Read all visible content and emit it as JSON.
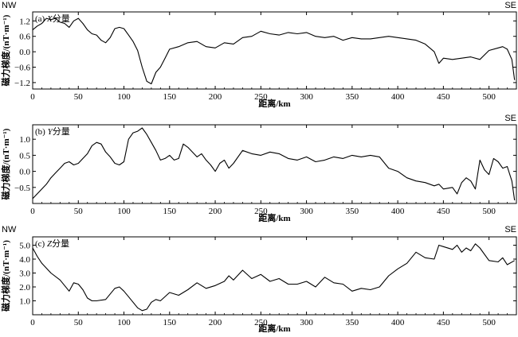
{
  "chart_data": [
    {
      "type": "line",
      "panel_label": "(a) ",
      "panel_label_italic": "X",
      "panel_label_suffix": "分量",
      "left_label": "NW",
      "right_label": "SE",
      "xlabel": "距离/km",
      "ylabel": "磁力梯度/(nT·m⁻¹)",
      "xlim": [
        0,
        530
      ],
      "ylim": [
        -1.45,
        1.55
      ],
      "xticks": [
        0,
        50,
        100,
        150,
        200,
        250,
        300,
        350,
        400,
        450,
        500
      ],
      "yticks": [
        -1.2,
        -0.6,
        0.0,
        0.6,
        1.2
      ],
      "ytick_labels": [
        "−1.2",
        "−0.6",
        "0.0",
        "0.6",
        "1.2"
      ],
      "series": [
        {
          "x": [
            0,
            5,
            10,
            15,
            20,
            25,
            30,
            35,
            40,
            45,
            50,
            55,
            60,
            65,
            70,
            75,
            80,
            85,
            90,
            95,
            100,
            105,
            110,
            115,
            120,
            125,
            130,
            135,
            140,
            145,
            150,
            160,
            170,
            180,
            190,
            200,
            210,
            220,
            230,
            240,
            250,
            260,
            270,
            280,
            290,
            300,
            310,
            320,
            330,
            340,
            350,
            360,
            370,
            380,
            390,
            400,
            410,
            420,
            430,
            440,
            445,
            450,
            460,
            470,
            480,
            490,
            500,
            510,
            515,
            520,
            525,
            528
          ],
          "values": [
            0.85,
            1.0,
            1.1,
            1.3,
            1.25,
            1.3,
            1.15,
            1.1,
            0.95,
            1.2,
            1.3,
            1.1,
            0.85,
            0.7,
            0.65,
            0.45,
            0.35,
            0.55,
            0.9,
            0.95,
            0.9,
            0.65,
            0.4,
            0.05,
            -0.6,
            -1.15,
            -1.25,
            -0.8,
            -0.6,
            -0.25,
            0.1,
            0.2,
            0.35,
            0.4,
            0.2,
            0.15,
            0.35,
            0.3,
            0.55,
            0.6,
            0.8,
            0.7,
            0.65,
            0.75,
            0.7,
            0.75,
            0.6,
            0.55,
            0.6,
            0.45,
            0.55,
            0.5,
            0.5,
            0.55,
            0.6,
            0.55,
            0.5,
            0.45,
            0.3,
            0.0,
            -0.45,
            -0.25,
            -0.3,
            -0.25,
            -0.2,
            -0.3,
            0.05,
            0.15,
            0.2,
            0.1,
            -0.3,
            -1.1
          ]
        }
      ]
    },
    {
      "type": "line",
      "panel_label": "(b) ",
      "panel_label_italic": "Y",
      "panel_label_suffix": "分量",
      "left_label": "",
      "right_label": "SE",
      "xlabel": "距离/km",
      "ylabel": "磁力梯度/(nT·m⁻¹)",
      "xlim": [
        0,
        530
      ],
      "ylim": [
        -1.0,
        1.45
      ],
      "xticks": [
        0,
        50,
        100,
        150,
        200,
        250,
        300,
        350,
        400,
        450,
        500
      ],
      "yticks": [
        -0.5,
        0.0,
        0.5,
        1.0
      ],
      "ytick_labels": [
        "−0.5",
        "0.0",
        "0.5",
        "1.0"
      ],
      "series": [
        {
          "x": [
            0,
            5,
            10,
            15,
            20,
            25,
            30,
            35,
            40,
            45,
            50,
            55,
            60,
            65,
            70,
            75,
            80,
            85,
            90,
            95,
            100,
            105,
            110,
            115,
            120,
            125,
            130,
            135,
            140,
            145,
            150,
            155,
            160,
            165,
            170,
            175,
            180,
            185,
            190,
            195,
            200,
            205,
            210,
            215,
            220,
            230,
            240,
            250,
            260,
            270,
            280,
            290,
            300,
            310,
            320,
            330,
            340,
            350,
            360,
            370,
            380,
            390,
            400,
            410,
            420,
            430,
            440,
            445,
            450,
            460,
            465,
            470,
            475,
            480,
            485,
            490,
            495,
            500,
            505,
            510,
            515,
            520,
            525,
            528
          ],
          "values": [
            -0.85,
            -0.7,
            -0.55,
            -0.4,
            -0.2,
            -0.05,
            0.1,
            0.25,
            0.3,
            0.2,
            0.25,
            0.4,
            0.55,
            0.8,
            0.9,
            0.85,
            0.6,
            0.45,
            0.25,
            0.2,
            0.3,
            1.0,
            1.2,
            1.25,
            1.35,
            1.15,
            0.9,
            0.65,
            0.35,
            0.4,
            0.5,
            0.35,
            0.4,
            0.85,
            0.75,
            0.6,
            0.45,
            0.55,
            0.35,
            0.2,
            0.0,
            0.25,
            0.35,
            0.1,
            0.25,
            0.65,
            0.55,
            0.5,
            0.6,
            0.55,
            0.4,
            0.35,
            0.45,
            0.3,
            0.35,
            0.45,
            0.4,
            0.5,
            0.45,
            0.5,
            0.45,
            0.1,
            0.0,
            -0.2,
            -0.3,
            -0.35,
            -0.45,
            -0.4,
            -0.55,
            -0.5,
            -0.7,
            -0.35,
            -0.2,
            -0.3,
            -0.55,
            0.35,
            0.05,
            -0.1,
            0.4,
            0.3,
            0.1,
            0.15,
            -0.3,
            -0.9
          ]
        }
      ]
    },
    {
      "type": "line",
      "panel_label": "(c) ",
      "panel_label_italic": "Z",
      "panel_label_suffix": "分量",
      "left_label": "NW",
      "right_label": "SE",
      "xlabel": "距离/km",
      "ylabel": "磁力梯度/(nT·m⁻¹)",
      "xlim": [
        0,
        530
      ],
      "ylim": [
        0.0,
        5.6
      ],
      "xticks": [
        0,
        50,
        100,
        150,
        200,
        250,
        300,
        350,
        400,
        450,
        500
      ],
      "yticks": [
        1.0,
        2.0,
        3.0,
        4.0,
        5.0
      ],
      "ytick_labels": [
        "1.0",
        "2.0",
        "3.0",
        "4.0",
        "5.0"
      ],
      "series": [
        {
          "x": [
            0,
            5,
            10,
            20,
            30,
            40,
            45,
            50,
            55,
            60,
            65,
            70,
            80,
            90,
            95,
            100,
            105,
            110,
            115,
            120,
            125,
            130,
            135,
            140,
            150,
            160,
            170,
            180,
            190,
            200,
            210,
            215,
            220,
            230,
            240,
            250,
            260,
            270,
            280,
            290,
            300,
            310,
            320,
            330,
            340,
            350,
            360,
            370,
            380,
            390,
            400,
            410,
            420,
            430,
            440,
            445,
            450,
            460,
            465,
            470,
            475,
            480,
            485,
            490,
            500,
            510,
            515,
            520,
            528
          ],
          "values": [
            4.8,
            4.2,
            3.7,
            3.0,
            2.5,
            1.7,
            2.3,
            2.2,
            1.8,
            1.2,
            1.0,
            1.0,
            1.1,
            1.9,
            2.0,
            1.7,
            1.3,
            0.9,
            0.5,
            0.3,
            0.4,
            0.9,
            1.1,
            1.0,
            1.6,
            1.4,
            1.8,
            2.3,
            1.9,
            2.1,
            2.4,
            2.8,
            2.5,
            3.2,
            2.6,
            2.9,
            2.4,
            2.6,
            2.2,
            2.2,
            2.4,
            2.0,
            2.7,
            2.3,
            2.2,
            1.7,
            1.9,
            1.8,
            2.0,
            2.8,
            3.3,
            3.7,
            4.5,
            4.1,
            4.0,
            5.0,
            4.9,
            4.7,
            5.0,
            4.5,
            4.8,
            4.6,
            5.1,
            4.8,
            3.9,
            3.8,
            4.1,
            3.6,
            3.9
          ]
        }
      ]
    }
  ]
}
